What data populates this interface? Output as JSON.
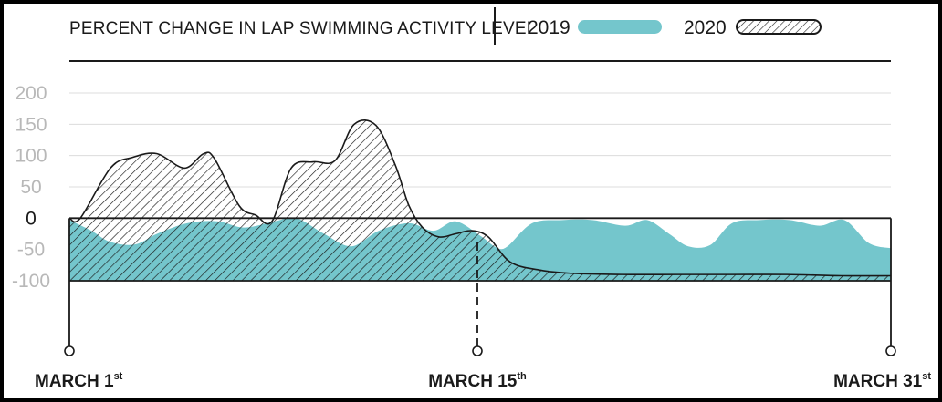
{
  "colors": {
    "y2019": "#74c6cc",
    "y2020_hatch": "#1a1a1a",
    "grid": "#dcdcdc",
    "axis": "#1a1a1a",
    "tick_text": "#b8b8b8"
  },
  "chart_data": {
    "type": "area",
    "title": "PERCENT CHANGE IN LAP SWIMMING ACTIVITY LEVEL",
    "legend": {
      "placement": "top-right",
      "entries": [
        "2019",
        "2020"
      ]
    },
    "yticks": [
      "200",
      "150",
      "100",
      "50",
      "0",
      "-50",
      "-100"
    ],
    "ylim": [
      -100,
      200
    ],
    "xlim": [
      1,
      31
    ],
    "x_labels": [
      {
        "main": "MARCH 1",
        "sup": "st",
        "x": 1
      },
      {
        "main": "MARCH 15",
        "sup": "th",
        "x": 15
      },
      {
        "main": "MARCH 31",
        "sup": "st",
        "x": 31
      }
    ],
    "grid": true,
    "marker_day": 15.9,
    "series": [
      {
        "name": "2019",
        "x": [
          1,
          1.8,
          2.5,
          3.4,
          4.2,
          5.3,
          6.4,
          7.4,
          8.5,
          9.3,
          10.3,
          11.3,
          12.3,
          13.4,
          14.3,
          15.1,
          16.0,
          16.6,
          17.0,
          17.9,
          19.0,
          20.1,
          21.3,
          22.1,
          22.9,
          23.6,
          24.4,
          25.2,
          26.2,
          27.3,
          28.4,
          29.3,
          30.2,
          31
        ],
        "values": [
          -3,
          -20,
          -38,
          -42,
          -25,
          -8,
          -5,
          -15,
          -5,
          0,
          -25,
          -45,
          -20,
          -8,
          -20,
          -5,
          -28,
          -47,
          -45,
          -8,
          -3,
          -3,
          -12,
          -3,
          -25,
          -45,
          -43,
          -8,
          -3,
          -3,
          -12,
          -3,
          -40,
          -48
        ]
      },
      {
        "name": "2020",
        "x": [
          1,
          1.4,
          2.5,
          3.3,
          4.2,
          5.2,
          5.9,
          6.3,
          7.2,
          7.8,
          8.4,
          9.1,
          9.9,
          10.7,
          11.4,
          12.2,
          12.9,
          13.4,
          13.9,
          14.5,
          15.1,
          15.7,
          16.3,
          17.1,
          18.2,
          19.3,
          21.2,
          23.2,
          25.2,
          27.2,
          29.2,
          31
        ],
        "values": [
          0,
          0,
          80,
          97,
          103,
          80,
          103,
          95,
          20,
          5,
          -5,
          80,
          90,
          92,
          150,
          148,
          85,
          20,
          -15,
          -30,
          -25,
          -20,
          -30,
          -70,
          -83,
          -88,
          -90,
          -90,
          -90,
          -90,
          -92,
          -92
        ]
      }
    ]
  }
}
